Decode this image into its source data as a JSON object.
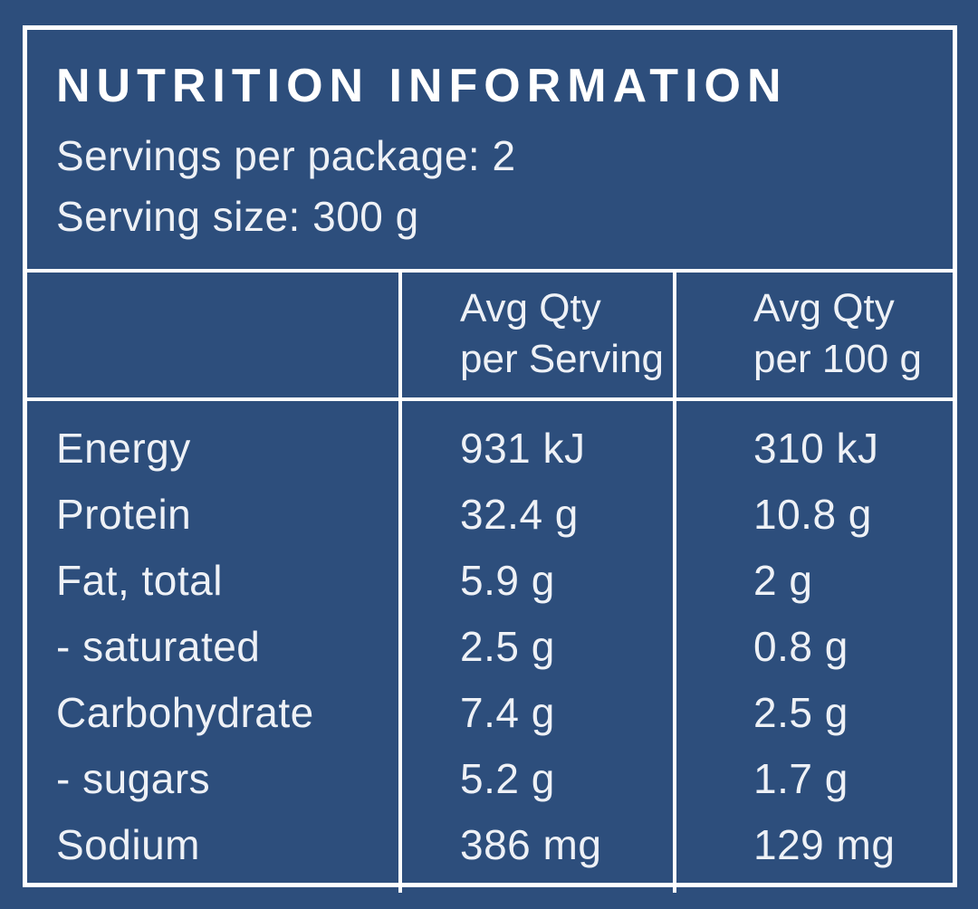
{
  "panel": {
    "title": "NUTRITION INFORMATION",
    "servings_per_package": "Servings per package: 2",
    "serving_size": "Serving size: 300 g"
  },
  "table": {
    "header": {
      "per_serving": [
        "Avg Qty",
        "per Serving"
      ],
      "per_100g": [
        "Avg Qty",
        "per 100 g"
      ]
    },
    "rows": [
      {
        "nutrient": "Energy",
        "per_serving": "931 kJ",
        "per_100g": "310 kJ"
      },
      {
        "nutrient": "Protein",
        "per_serving": "32.4 g",
        "per_100g": "10.8 g"
      },
      {
        "nutrient": "Fat, total",
        "per_serving": "5.9 g",
        "per_100g": "2 g"
      },
      {
        "nutrient": "- saturated",
        "per_serving": "2.5 g",
        "per_100g": "0.8 g"
      },
      {
        "nutrient": "Carbohydrate",
        "per_serving": "7.4 g",
        "per_100g": "2.5 g"
      },
      {
        "nutrient": "- sugars",
        "per_serving": "5.2 g",
        "per_100g": "1.7 g"
      },
      {
        "nutrient": "Sodium",
        "per_serving": "386 mg",
        "per_100g": "129 mg"
      }
    ]
  },
  "colors": {
    "background": "#2d4e7c",
    "text": "#eef1f6",
    "border": "#ffffff"
  }
}
